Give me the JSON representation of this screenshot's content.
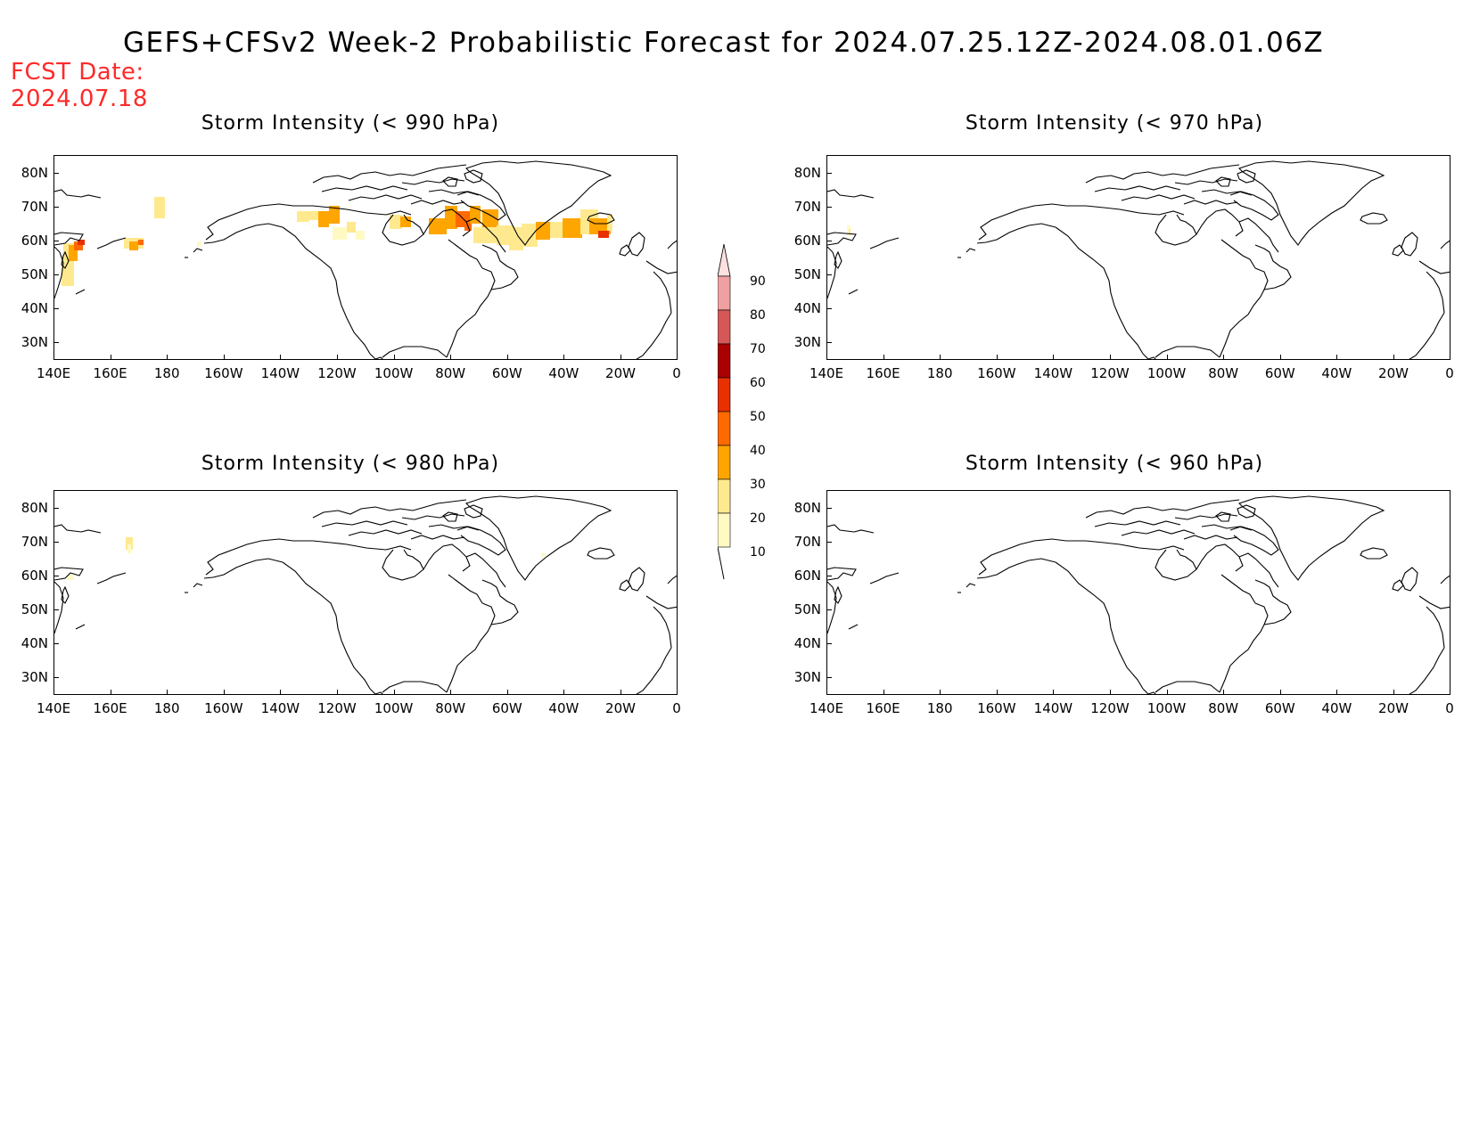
{
  "title": "GEFS+CFSv2 Week-2 Probabilistic Forecast for 2024.07.25.12Z-2024.08.01.06Z",
  "fcst_label": "FCST Date:",
  "fcst_date": "2024.07.18",
  "lat_labels": [
    "80N",
    "70N",
    "60N",
    "50N",
    "40N",
    "30N"
  ],
  "lon_labels": [
    "140E",
    "160E",
    "180",
    "160W",
    "140W",
    "120W",
    "100W",
    "80W",
    "60W",
    "40W",
    "20W",
    "0"
  ],
  "panels": [
    {
      "id": "p990",
      "title": "Storm Intensity (< 990 hPa)"
    },
    {
      "id": "p970",
      "title": "Storm Intensity (< 970 hPa)"
    },
    {
      "id": "p980",
      "title": "Storm Intensity (< 980 hPa)"
    },
    {
      "id": "p960",
      "title": "Storm Intensity (< 960 hPa)"
    }
  ],
  "colorbar": {
    "levels": [
      "10",
      "20",
      "30",
      "40",
      "50",
      "60",
      "70",
      "80",
      "90"
    ],
    "colors": [
      "#fff9c4",
      "#ffe98f",
      "#ffa500",
      "#ff6a00",
      "#e83000",
      "#aa0000",
      "#d55858",
      "#f0a0a0",
      "#fde0e0"
    ]
  }
}
